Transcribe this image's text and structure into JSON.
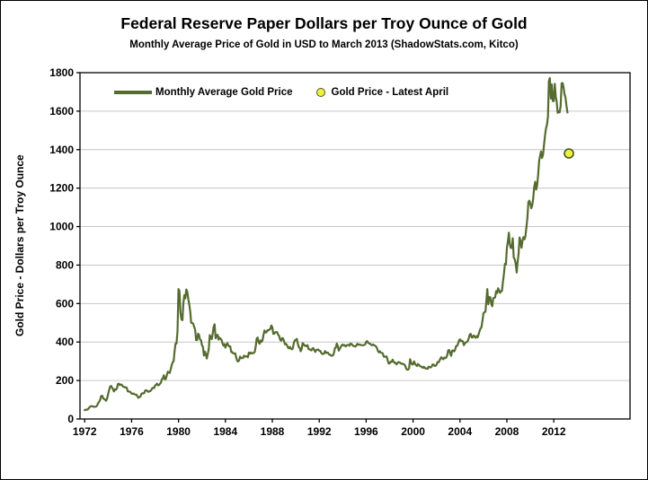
{
  "chart_data": {
    "type": "line",
    "title": "Federal Reserve Paper Dollars per Troy Ounce of Gold",
    "subtitle": "Monthly Average Price of Gold in USD to March 2013 (ShadowStats.com, Kitco)",
    "xlabel": "",
    "ylabel": "Gold Price - Dollars per Troy Ounce",
    "xlim": [
      1971.6,
      2018.5
    ],
    "ylim": [
      0,
      1800
    ],
    "x_ticks": [
      1972,
      1976,
      1980,
      1984,
      1988,
      1992,
      1996,
      2000,
      2004,
      2008,
      2012
    ],
    "y_ticks": [
      0,
      200,
      400,
      600,
      800,
      1000,
      1200,
      1400,
      1600,
      1800
    ],
    "grid": "horizontal",
    "grid_color": "#c6c6c6",
    "legend_position": "top-left-inside",
    "series": [
      {
        "name": "Monthly Average Gold Price",
        "color": "#556b2f",
        "x_start": 1972.0,
        "points_per_year": 12,
        "values": [
          45.8,
          48.3,
          48.3,
          49.0,
          54.6,
          62.1,
          65.7,
          67.0,
          65.5,
          64.9,
          62.9,
          63.9,
          65.1,
          74.2,
          84.4,
          90.5,
          102.0,
          120.1,
          120.2,
          106.8,
          103.0,
          100.1,
          94.8,
          106.7,
          129.2,
          150.2,
          168.4,
          172.2,
          163.3,
          154.1,
          143.0,
          154.6,
          151.8,
          158.8,
          181.7,
          183.9,
          176.3,
          179.0,
          178.2,
          169.5,
          167.4,
          164.3,
          165.1,
          162.8,
          144.1,
          142.9,
          142.4,
          139.3,
          131.5,
          131.1,
          132.6,
          127.9,
          126.9,
          125.7,
          117.8,
          109.9,
          114.2,
          116.1,
          130.5,
          133.9,
          132.3,
          136.3,
          148.2,
          149.2,
          146.6,
          140.8,
          143.4,
          144.9,
          149.5,
          158.9,
          162.1,
          160.4,
          173.2,
          178.2,
          183.7,
          175.3,
          176.3,
          183.7,
          188.2,
          206.3,
          212.1,
          227.4,
          206.1,
          207.8,
          227.3,
          245.7,
          242.0,
          239.2,
          257.6,
          279.1,
          294.7,
          300.8,
          355.1,
          391.7,
          392.0,
          455.1,
          675.3,
          665.3,
          553.6,
          517.4,
          513.8,
          600.7,
          644.3,
          627.1,
          673.6,
          661.1,
          623.5,
          594.9,
          557.4,
          499.8,
          498.8,
          495.8,
          479.7,
          464.8,
          409.3,
          410.2,
          443.6,
          437.8,
          413.4,
          410.1,
          384.4,
          374.1,
          330.0,
          350.3,
          333.8,
          314.5,
          338.4,
          364.2,
          435.8,
          422.2,
          414.9,
          444.3,
          481.3,
          491.9,
          419.7,
          432.9,
          438.1,
          412.8,
          422.7,
          416.2,
          411.8,
          393.6,
          381.7,
          389.4,
          370.9,
          386.3,
          394.3,
          381.4,
          377.4,
          377.7,
          347.5,
          347.7,
          341.1,
          340.2,
          341.2,
          320.1,
          302.7,
          299.1,
          304.2,
          324.7,
          316.6,
          316.8,
          317.2,
          329.3,
          324.0,
          325.9,
          325.3,
          320.8,
          345.4,
          338.9,
          345.7,
          340.4,
          342.6,
          342.8,
          348.5,
          376.6,
          417.7,
          423.5,
          398.8,
          391.2,
          408.3,
          401.1,
          408.9,
          438.4,
          460.2,
          449.6,
          450.5,
          461.2,
          460.2,
          465.4,
          467.6,
          486.3,
          476.6,
          442.1,
          443.6,
          451.6,
          451.0,
          451.3,
          437.6,
          431.3,
          412.8,
          406.8,
          420.2,
          418.5,
          404.0,
          387.8,
          390.1,
          384.1,
          371.0,
          367.6,
          375.0,
          365.4,
          361.8,
          366.9,
          394.3,
          409.4,
          410.1,
          416.8,
          393.1,
          374.3,
          369.2,
          352.3,
          362.5,
          394.7,
          389.5,
          380.7,
          381.7,
          378.2,
          383.6,
          363.8,
          363.3,
          358.4,
          356.8,
          366.7,
          367.7,
          356.2,
          348.7,
          358.7,
          360.2,
          361.1,
          354.5,
          353.9,
          344.3,
          338.5,
          337.2,
          340.8,
          353.0,
          343.0,
          345.6,
          344.4,
          335.1,
          334.8,
          329.0,
          329.4,
          330.1,
          342.1,
          367.2,
          371.9,
          392.2,
          378.5,
          355.3,
          364.2,
          373.5,
          383.3,
          386.9,
          381.9,
          384.1,
          377.3,
          381.3,
          385.6,
          385.5,
          380.4,
          391.6,
          389.8,
          384.4,
          379.3,
          378.6,
          376.5,
          382.1,
          391.0,
          385.1,
          387.6,
          386.2,
          383.8,
          383.1,
          383.1,
          385.3,
          387.4,
          400.3,
          404.8,
          396.3,
          392.8,
          391.9,
          385.3,
          383.5,
          387.4,
          383.1,
          381.1,
          377.9,
          369.0,
          355.1,
          346.6,
          352.1,
          344.5,
          343.9,
          340.8,
          324.1,
          324.0,
          322.8,
          324.9,
          306.0,
          288.7,
          289.2,
          297.5,
          295.9,
          308.3,
          299.1,
          292.3,
          292.9,
          284.1,
          289.0,
          296.0,
          294.1,
          291.6,
          287.1,
          287.3,
          286.0,
          282.6,
          276.8,
          261.3,
          256.1,
          256.8,
          264.7,
          310.7,
          293.2,
          283.7,
          284.3,
          299.9,
          286.4,
          279.9,
          275.2,
          285.7,
          281.6,
          274.5,
          273.7,
          270.0,
          266.0,
          271.5,
          265.5,
          261.9,
          263.0,
          260.5,
          272.4,
          270.2,
          267.5,
          272.4,
          283.4,
          283.1,
          276.2,
          276.0,
          281.7,
          295.5,
          294.1,
          302.7,
          314.5,
          321.2,
          313.3,
          310.3,
          319.2,
          316.6,
          319.2,
          333.4,
          356.9,
          358.5,
          340.6,
          328.2,
          355.7,
          356.5,
          351.0,
          359.8,
          379.0,
          378.9,
          389.9,
          407.6,
          414.0,
          405.3,
          406.7,
          403.0,
          383.8,
          392.4,
          398.1,
          400.5,
          405.3,
          420.5,
          439.4,
          442.1,
          424.2,
          423.4,
          434.2,
          429.2,
          421.9,
          430.7,
          424.5,
          437.9,
          456.0,
          469.9,
          476.7,
          510.1,
          549.9,
          555.0,
          557.1,
          610.7,
          675.4,
          596.2,
          633.7,
          632.6,
          598.2,
          585.8,
          627.8,
          629.8,
          631.2,
          664.7,
          654.9,
          679.4,
          666.9,
          655.5,
          665.3,
          665.4,
          712.7,
          754.6,
          806.3,
          803.2,
          889.6,
          922.3,
          968.4,
          909.7,
          888.7,
          889.5,
          939.8,
          839.0,
          829.9,
          806.6,
          760.9,
          816.1,
          858.7,
          943.2,
          924.3,
          890.2,
          928.6,
          945.7,
          934.2,
          949.4,
          996.6,
          1043.2,
          1127.0,
          1134.7,
          1118.0,
          1095.4,
          1113.3,
          1148.7,
          1205.4,
          1232.9,
          1193.0,
          1215.8,
          1271.1,
          1342.0,
          1369.9,
          1390.6,
          1356.4,
          1372.7,
          1424.0,
          1473.8,
          1510.4,
          1528.7,
          1572.8,
          1755.8,
          1771.9,
          1665.2,
          1739.0,
          1652.3,
          1652.2,
          1742.6,
          1673.8,
          1649.7,
          1591.2,
          1598.8,
          1593.9,
          1626.0,
          1744.8,
          1746.6,
          1721.1,
          1688.0,
          1670.9,
          1627.6,
          1592.9
        ]
      }
    ],
    "marker": {
      "name": "Gold Price - Latest April",
      "x": 2013.29,
      "y": 1380,
      "fill": "#eef23c",
      "stroke": "#4a5822"
    }
  }
}
